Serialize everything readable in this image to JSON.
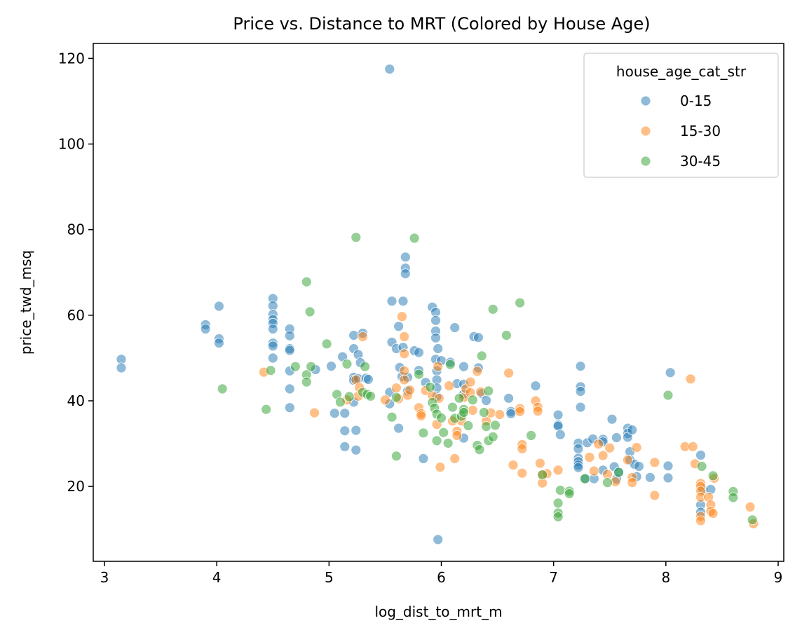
{
  "chart_data": {
    "type": "scatter",
    "title": "Price vs. Distance to MRT (Colored by House Age)",
    "xlabel": "log_dist_to_mrt_m",
    "ylabel": "price_twd_msq",
    "xlim": [
      2.9,
      9.05
    ],
    "ylim": [
      2.5,
      123.5
    ],
    "xticks": [
      3,
      4,
      5,
      6,
      7,
      8,
      9
    ],
    "yticks": [
      20,
      40,
      60,
      80,
      100,
      120
    ],
    "grid": false,
    "legend": {
      "title": "house_age_cat_str",
      "placement": "top-right"
    },
    "series": [
      {
        "name": "0-15",
        "color": "#1f77b4",
        "points": [
          [
            3.15,
            49.7
          ],
          [
            3.15,
            47.7
          ],
          [
            3.9,
            57.8
          ],
          [
            3.9,
            56.8
          ],
          [
            4.02,
            62.1
          ],
          [
            4.02,
            54.5
          ],
          [
            4.02,
            53.5
          ],
          [
            4.5,
            63.9
          ],
          [
            4.5,
            62.2
          ],
          [
            4.5,
            60.2
          ],
          [
            4.5,
            59.0
          ],
          [
            4.5,
            58.1
          ],
          [
            4.5,
            56.8
          ],
          [
            4.5,
            53.5
          ],
          [
            4.5,
            52.8
          ],
          [
            4.5,
            50.0
          ],
          [
            4.65,
            56.8
          ],
          [
            4.65,
            55.2
          ],
          [
            4.65,
            52.2
          ],
          [
            4.65,
            51.8
          ],
          [
            4.65,
            47.0
          ],
          [
            4.65,
            42.8
          ],
          [
            4.65,
            38.4
          ],
          [
            4.88,
            47.3
          ],
          [
            5.02,
            48.1
          ],
          [
            5.05,
            37.1
          ],
          [
            5.12,
            50.3
          ],
          [
            5.14,
            37.1
          ],
          [
            5.14,
            33.0
          ],
          [
            5.14,
            29.3
          ],
          [
            5.22,
            55.3
          ],
          [
            5.22,
            52.2
          ],
          [
            5.22,
            45.5
          ],
          [
            5.22,
            44.8
          ],
          [
            5.22,
            39.7
          ],
          [
            5.24,
            33.1
          ],
          [
            5.24,
            28.5
          ],
          [
            5.26,
            50.8
          ],
          [
            5.26,
            45.2
          ],
          [
            5.28,
            48.9
          ],
          [
            5.3,
            55.8
          ],
          [
            5.33,
            45.3
          ],
          [
            5.35,
            45.0
          ],
          [
            5.54,
            117.5
          ],
          [
            5.54,
            42.0
          ],
          [
            5.54,
            39.3
          ],
          [
            5.56,
            53.7
          ],
          [
            5.56,
            63.3
          ],
          [
            5.6,
            52.2
          ],
          [
            5.62,
            33.6
          ],
          [
            5.62,
            57.4
          ],
          [
            5.63,
            47.8
          ],
          [
            5.65,
            45.7
          ],
          [
            5.66,
            52.5
          ],
          [
            5.66,
            63.3
          ],
          [
            5.68,
            73.6
          ],
          [
            5.68,
            71.0
          ],
          [
            5.68,
            69.7
          ],
          [
            5.7,
            45.5
          ],
          [
            5.7,
            42.3
          ],
          [
            5.76,
            51.7
          ],
          [
            5.8,
            51.3
          ],
          [
            5.8,
            47.1
          ],
          [
            5.84,
            26.5
          ],
          [
            5.86,
            44.3
          ],
          [
            5.92,
            61.9
          ],
          [
            5.95,
            60.7
          ],
          [
            5.95,
            58.8
          ],
          [
            5.95,
            56.3
          ],
          [
            5.95,
            54.7
          ],
          [
            5.95,
            49.7
          ],
          [
            5.96,
            47.0
          ],
          [
            5.96,
            44.9
          ],
          [
            5.96,
            43.0
          ],
          [
            5.96,
            41.0
          ],
          [
            5.97,
            52.2
          ],
          [
            5.97,
            7.6
          ],
          [
            6.0,
            49.4
          ],
          [
            6.08,
            49.0
          ],
          [
            6.12,
            57.1
          ],
          [
            6.14,
            44.0
          ],
          [
            6.2,
            41.6
          ],
          [
            6.2,
            43.9
          ],
          [
            6.2,
            48.0
          ],
          [
            6.2,
            31.3
          ],
          [
            6.29,
            55.0
          ],
          [
            6.33,
            54.8
          ],
          [
            6.33,
            47.7
          ],
          [
            6.36,
            41.7
          ],
          [
            6.4,
            40.1
          ],
          [
            6.6,
            40.6
          ],
          [
            6.62,
            37.5
          ],
          [
            6.62,
            37.0
          ],
          [
            6.84,
            43.5
          ],
          [
            7.04,
            36.7
          ],
          [
            7.04,
            34.4
          ],
          [
            7.04,
            34.1
          ],
          [
            7.06,
            32.1
          ],
          [
            7.22,
            30.1
          ],
          [
            7.22,
            28.8
          ],
          [
            7.22,
            26.6
          ],
          [
            7.22,
            25.8
          ],
          [
            7.22,
            25.0
          ],
          [
            7.22,
            24.4
          ],
          [
            7.24,
            48.1
          ],
          [
            7.24,
            43.3
          ],
          [
            7.24,
            42.2
          ],
          [
            7.24,
            38.5
          ],
          [
            7.28,
            21.8
          ],
          [
            7.3,
            30.2
          ],
          [
            7.35,
            31.1
          ],
          [
            7.36,
            21.8
          ],
          [
            7.44,
            31.0
          ],
          [
            7.44,
            30.4
          ],
          [
            7.44,
            23.8
          ],
          [
            7.52,
            35.7
          ],
          [
            7.54,
            24.6
          ],
          [
            7.56,
            31.4
          ],
          [
            7.56,
            21.7
          ],
          [
            7.58,
            23.3
          ],
          [
            7.66,
            33.6
          ],
          [
            7.66,
            32.4
          ],
          [
            7.66,
            31.5
          ],
          [
            7.68,
            28.1
          ],
          [
            7.68,
            26.2
          ],
          [
            7.7,
            33.2
          ],
          [
            7.72,
            25.2
          ],
          [
            7.74,
            22.3
          ],
          [
            7.76,
            24.7
          ],
          [
            7.86,
            22.1
          ],
          [
            8.02,
            24.8
          ],
          [
            8.02,
            22.0
          ],
          [
            8.04,
            46.6
          ],
          [
            8.31,
            27.3
          ],
          [
            8.31,
            15.7
          ],
          [
            8.31,
            14.0
          ],
          [
            8.33,
            19.2
          ],
          [
            8.4,
            19.3
          ]
        ]
      },
      {
        "name": "15-30",
        "color": "#ff7f0e",
        "points": [
          [
            4.42,
            46.7
          ],
          [
            4.87,
            37.2
          ],
          [
            5.16,
            40.2
          ],
          [
            5.24,
            44.9
          ],
          [
            5.26,
            41.1
          ],
          [
            5.27,
            43.1
          ],
          [
            5.3,
            55.0
          ],
          [
            5.5,
            40.2
          ],
          [
            5.6,
            43.0
          ],
          [
            5.62,
            40.5
          ],
          [
            5.65,
            59.7
          ],
          [
            5.67,
            55.0
          ],
          [
            5.67,
            51.0
          ],
          [
            5.67,
            47.0
          ],
          [
            5.67,
            44.9
          ],
          [
            5.7,
            41.3
          ],
          [
            5.72,
            42.5
          ],
          [
            5.8,
            38.4
          ],
          [
            5.82,
            37.0
          ],
          [
            5.82,
            36.5
          ],
          [
            5.86,
            42.4
          ],
          [
            5.92,
            41.2
          ],
          [
            5.96,
            34.5
          ],
          [
            5.97,
            48.0
          ],
          [
            5.98,
            40.6
          ],
          [
            5.99,
            24.5
          ],
          [
            6.07,
            43.5
          ],
          [
            6.1,
            35.3
          ],
          [
            6.12,
            26.5
          ],
          [
            6.14,
            32.9
          ],
          [
            6.14,
            31.9
          ],
          [
            6.18,
            35.3
          ],
          [
            6.2,
            40.8
          ],
          [
            6.22,
            42.8
          ],
          [
            6.26,
            44.4
          ],
          [
            6.26,
            41.9
          ],
          [
            6.28,
            37.8
          ],
          [
            6.32,
            46.9
          ],
          [
            6.35,
            42.1
          ],
          [
            6.4,
            35.3
          ],
          [
            6.44,
            37.2
          ],
          [
            6.52,
            36.8
          ],
          [
            6.6,
            46.5
          ],
          [
            6.64,
            25.0
          ],
          [
            6.7,
            38.2
          ],
          [
            6.7,
            37.5
          ],
          [
            6.72,
            29.8
          ],
          [
            6.72,
            28.8
          ],
          [
            6.72,
            23.1
          ],
          [
            6.84,
            40.0
          ],
          [
            6.86,
            38.5
          ],
          [
            6.86,
            37.6
          ],
          [
            6.88,
            25.4
          ],
          [
            6.9,
            22.7
          ],
          [
            6.9,
            20.8
          ],
          [
            6.94,
            23.0
          ],
          [
            7.04,
            23.8
          ],
          [
            7.32,
            26.8
          ],
          [
            7.36,
            23.6
          ],
          [
            7.4,
            29.9
          ],
          [
            7.44,
            27.2
          ],
          [
            7.48,
            22.8
          ],
          [
            7.5,
            29.0
          ],
          [
            7.55,
            21.1
          ],
          [
            7.66,
            26.2
          ],
          [
            7.7,
            22.1
          ],
          [
            7.7,
            20.9
          ],
          [
            7.74,
            29.1
          ],
          [
            7.9,
            25.6
          ],
          [
            7.9,
            17.9
          ],
          [
            8.17,
            29.3
          ],
          [
            8.22,
            45.1
          ],
          [
            8.24,
            29.3
          ],
          [
            8.26,
            25.3
          ],
          [
            8.31,
            20.7
          ],
          [
            8.31,
            20.0
          ],
          [
            8.31,
            18.9
          ],
          [
            8.31,
            17.5
          ],
          [
            8.31,
            13.0
          ],
          [
            8.31,
            12.0
          ],
          [
            8.38,
            17.5
          ],
          [
            8.4,
            15.7
          ],
          [
            8.4,
            14.2
          ],
          [
            8.42,
            13.7
          ],
          [
            8.43,
            21.9
          ],
          [
            8.75,
            15.2
          ],
          [
            8.78,
            11.3
          ]
        ]
      },
      {
        "name": "30-45",
        "color": "#2ca02c",
        "points": [
          [
            4.05,
            42.8
          ],
          [
            4.44,
            38.0
          ],
          [
            4.48,
            47.1
          ],
          [
            4.7,
            48.0
          ],
          [
            4.8,
            67.8
          ],
          [
            4.8,
            46.1
          ],
          [
            4.8,
            44.4
          ],
          [
            4.83,
            60.8
          ],
          [
            4.84,
            48.0
          ],
          [
            4.98,
            53.3
          ],
          [
            5.07,
            41.5
          ],
          [
            5.1,
            39.7
          ],
          [
            5.16,
            48.6
          ],
          [
            5.18,
            41.0
          ],
          [
            5.24,
            78.2
          ],
          [
            5.3,
            42.0
          ],
          [
            5.32,
            48.0
          ],
          [
            5.34,
            41.5
          ],
          [
            5.37,
            41.1
          ],
          [
            5.56,
            36.2
          ],
          [
            5.6,
            27.1
          ],
          [
            5.6,
            40.8
          ],
          [
            5.76,
            78.0
          ],
          [
            5.8,
            46.2
          ],
          [
            5.84,
            32.5
          ],
          [
            5.9,
            43.2
          ],
          [
            5.92,
            39.6
          ],
          [
            5.94,
            38.3
          ],
          [
            5.96,
            30.7
          ],
          [
            5.96,
            36.9
          ],
          [
            6.0,
            36.0
          ],
          [
            6.02,
            32.6
          ],
          [
            6.06,
            30.1
          ],
          [
            6.08,
            48.5
          ],
          [
            6.1,
            38.5
          ],
          [
            6.12,
            35.9
          ],
          [
            6.16,
            40.6
          ],
          [
            6.18,
            36.4
          ],
          [
            6.2,
            38.0
          ],
          [
            6.2,
            37.3
          ],
          [
            6.24,
            34.2
          ],
          [
            6.28,
            40.2
          ],
          [
            6.32,
            29.6
          ],
          [
            6.34,
            28.6
          ],
          [
            6.36,
            50.5
          ],
          [
            6.38,
            37.3
          ],
          [
            6.4,
            34.0
          ],
          [
            6.42,
            42.3
          ],
          [
            6.42,
            30.7
          ],
          [
            6.46,
            61.4
          ],
          [
            6.46,
            31.6
          ],
          [
            6.48,
            34.3
          ],
          [
            6.58,
            55.3
          ],
          [
            6.7,
            62.9
          ],
          [
            6.8,
            31.9
          ],
          [
            6.9,
            22.7
          ],
          [
            7.04,
            16.1
          ],
          [
            7.04,
            13.8
          ],
          [
            7.04,
            12.9
          ],
          [
            7.06,
            19.1
          ],
          [
            7.14,
            18.9
          ],
          [
            7.14,
            18.3
          ],
          [
            7.28,
            21.8
          ],
          [
            7.48,
            20.9
          ],
          [
            7.58,
            23.3
          ],
          [
            8.02,
            41.3
          ],
          [
            8.32,
            24.7
          ],
          [
            8.42,
            22.5
          ],
          [
            8.6,
            18.8
          ],
          [
            8.6,
            17.4
          ],
          [
            8.77,
            12.2
          ]
        ]
      }
    ]
  }
}
